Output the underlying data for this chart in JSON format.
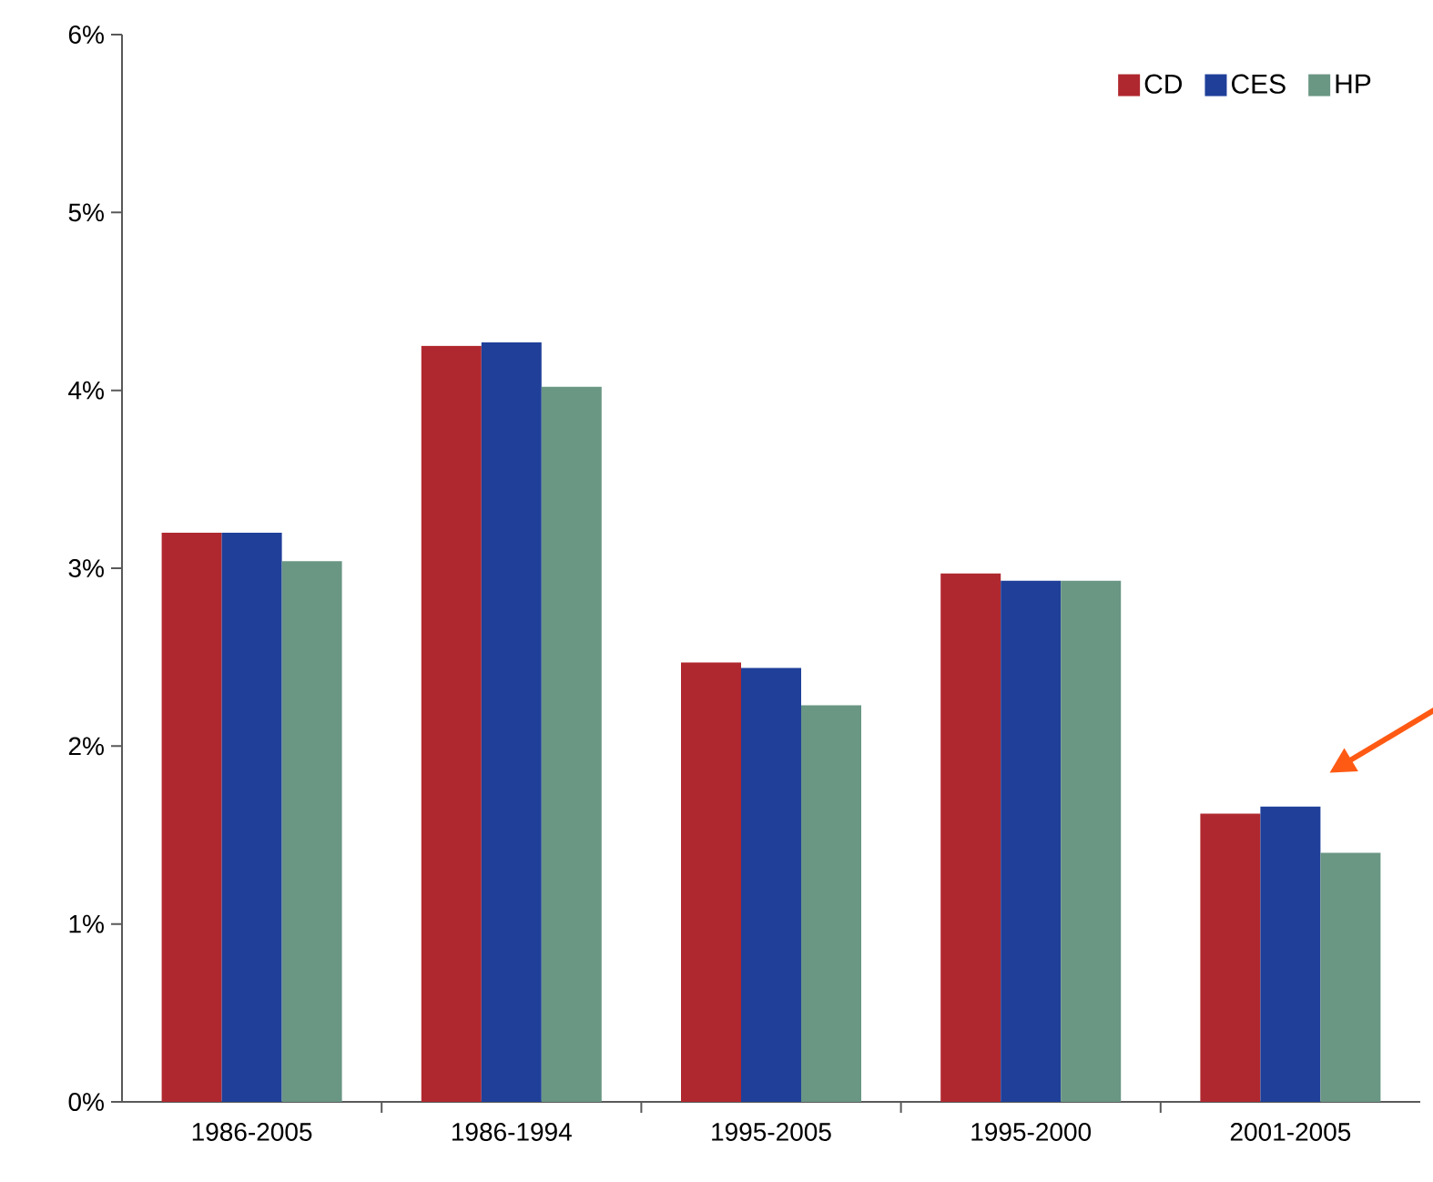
{
  "chart_data": {
    "type": "bar",
    "categories": [
      "1986-2005",
      "1986-1994",
      "1995-2005",
      "1995-2000",
      "2001-2005"
    ],
    "series": [
      {
        "name": "CD",
        "color": "#b0282f",
        "values": [
          3.2,
          4.25,
          2.47,
          2.97,
          1.62
        ]
      },
      {
        "name": "CES",
        "color": "#1f3f99",
        "values": [
          3.2,
          4.27,
          2.44,
          2.93,
          1.66
        ]
      },
      {
        "name": "HP",
        "color": "#6a9684",
        "values": [
          3.04,
          4.02,
          2.23,
          2.93,
          1.4
        ]
      }
    ],
    "ylim": [
      0,
      6
    ],
    "yticks": [
      {
        "value": 0,
        "label": "0%"
      },
      {
        "value": 1,
        "label": "1%"
      },
      {
        "value": 2,
        "label": "2%"
      },
      {
        "value": 3,
        "label": "3%"
      },
      {
        "value": 4,
        "label": "4%"
      },
      {
        "value": 5,
        "label": "5%"
      },
      {
        "value": 6,
        "label": "6%"
      }
    ],
    "grid": false,
    "legend": "top right"
  }
}
